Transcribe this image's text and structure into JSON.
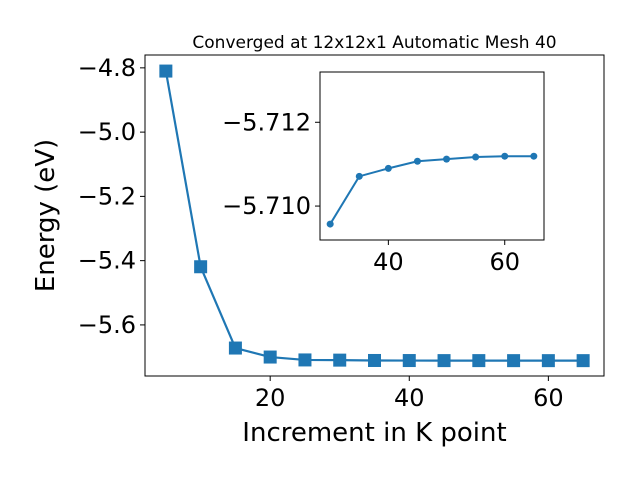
{
  "chart_data": [
    {
      "type": "line",
      "title": "Converged at 12x12x1 Automatic Mesh 40",
      "x_label": "Increment in K point",
      "y_label": "Energy (eV)",
      "x": [
        5,
        10,
        15,
        20,
        25,
        30,
        35,
        40,
        45,
        50,
        55,
        60,
        65
      ],
      "series": [
        {
          "name": "Energy",
          "color": "#1f77b4",
          "marker": "square",
          "values": [
            -4.81,
            -5.419,
            -5.672,
            -5.7,
            -5.709,
            -5.7096,
            -5.7107,
            -5.7109,
            -5.7111,
            -5.7111,
            -5.7112,
            -5.7112,
            -5.7112
          ]
        }
      ],
      "xlim": [
        2,
        68
      ],
      "ylim": [
        -5.759,
        -4.76
      ],
      "xticks": [
        20,
        40,
        60
      ],
      "yticks": [
        {
          "value": -4.8,
          "label": "−4.8"
        },
        {
          "value": -5.0,
          "label": "−5.0"
        },
        {
          "value": -5.2,
          "label": "−5.2"
        },
        {
          "value": -5.4,
          "label": "−5.4"
        },
        {
          "value": -5.6,
          "label": "−5.6"
        }
      ]
    },
    {
      "type": "line",
      "x": [
        30,
        35,
        40,
        45,
        50,
        55,
        60,
        65
      ],
      "series": [
        {
          "name": "Energy",
          "color": "#1f77b4",
          "marker": "circle",
          "values": [
            -5.70957,
            -5.71071,
            -5.7109,
            -5.71107,
            -5.71112,
            -5.71117,
            -5.71119,
            -5.71119
          ]
        }
      ],
      "xlim": [
        28.25,
        66.75
      ],
      "ylim": [
        -5.70919,
        -5.7132
      ],
      "xticks": [
        40,
        60
      ],
      "yticks": [
        {
          "value": -5.712,
          "label": "−5.712"
        },
        {
          "value": -5.71,
          "label": "−5.710"
        }
      ]
    }
  ]
}
